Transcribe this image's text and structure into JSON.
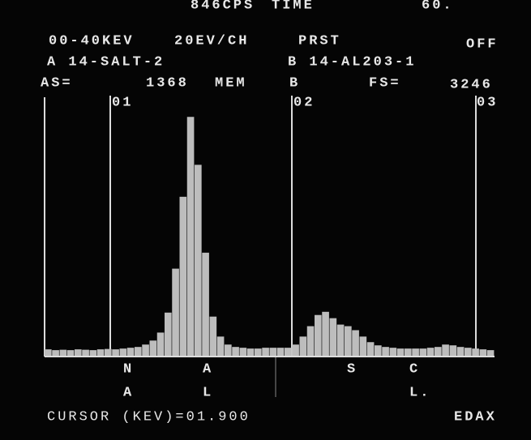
{
  "screen": {
    "top": {
      "rate": "846CPS",
      "time": "TIME",
      "clock": "60."
    },
    "line1": {
      "range": "00-40KEV",
      "scale": "20EV/CH",
      "preset": "PRST",
      "mode": "OFF"
    },
    "line2": {
      "a": "A 14-SALT-2",
      "b": "B 14-AL203-1"
    },
    "line3": {
      "as_label": "AS=",
      "as_value": "1368",
      "mem": "MEM",
      "b": "B",
      "fs_label": "FS=",
      "fs_value": 3246
    },
    "markers": [
      "01",
      "02",
      "03"
    ],
    "elements": [
      [
        "N",
        "A"
      ],
      [
        "A",
        "L"
      ],
      [
        "S"
      ],
      [
        "C",
        "L."
      ]
    ],
    "cursor": "CURSOR (KEV)=01.900",
    "brand": "EDAX"
  },
  "chart_data": {
    "type": "bar",
    "color": "#bdbdbd",
    "values": [
      90,
      80,
      85,
      80,
      90,
      85,
      80,
      90,
      95,
      90,
      100,
      110,
      120,
      150,
      200,
      300,
      550,
      1100,
      2000,
      3000,
      2400,
      1300,
      500,
      250,
      150,
      120,
      110,
      100,
      100,
      110,
      110,
      110,
      110,
      150,
      250,
      380,
      520,
      560,
      480,
      400,
      380,
      330,
      250,
      180,
      140,
      120,
      110,
      100,
      100,
      100,
      100,
      110,
      120,
      150,
      140,
      120,
      110,
      100,
      90,
      80
    ]
  }
}
